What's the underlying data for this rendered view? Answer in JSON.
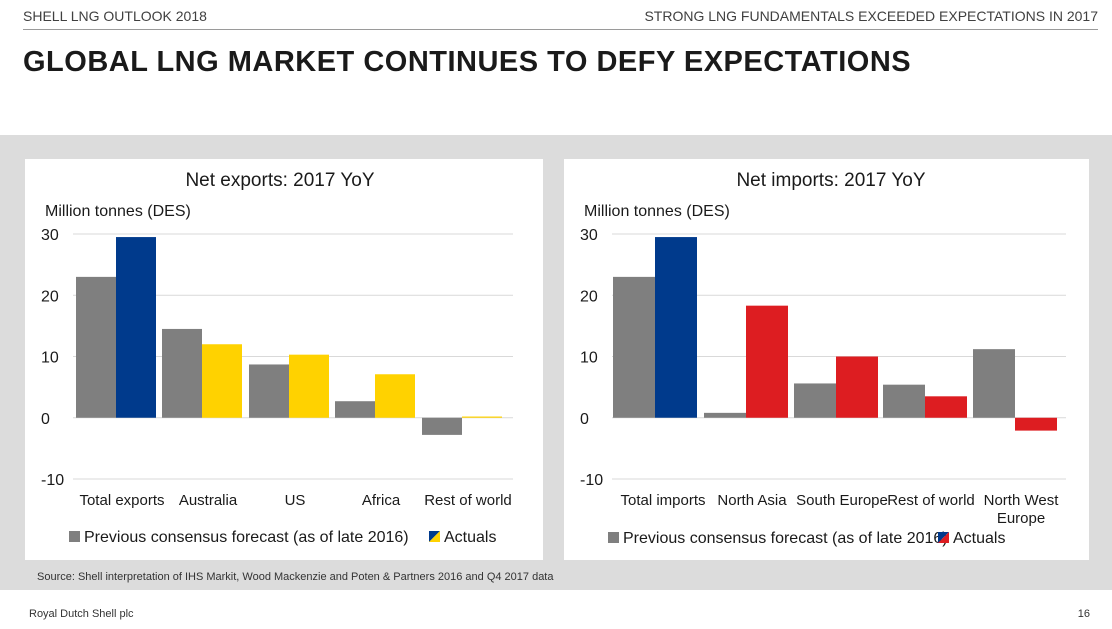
{
  "header": {
    "left": "SHELL LNG OUTLOOK 2018",
    "right": "STRONG LNG FUNDAMENTALS EXCEEDED EXPECTATIONS IN 2017"
  },
  "page_title": "GLOBAL LNG MARKET CONTINUES TO DEFY EXPECTATIONS",
  "source": "Source: Shell interpretation of IHS Markit, Wood Mackenzie and Poten & Partners 2016 and Q4 2017 data",
  "footer": {
    "company": "Royal Dutch Shell plc",
    "page_number": "16"
  },
  "colors": {
    "forecast": "#7f7f7f",
    "total_actual": "#003a8c",
    "exports_actual": "#ffd200",
    "imports_actual": "#dd1d21"
  },
  "chart_data": [
    {
      "type": "bar",
      "title": "Net exports: 2017 YoY",
      "ylabel": "Million tonnes (DES)",
      "ylim": [
        -10,
        30
      ],
      "yticks": [
        30,
        20,
        10,
        0,
        -10
      ],
      "grid": true,
      "legend_position": "bottom",
      "categories": [
        "Total exports",
        "Australia",
        "US",
        "Africa",
        "Rest of world"
      ],
      "series": [
        {
          "name": "Previous consensus forecast (as of late 2016)",
          "values": [
            23,
            14.5,
            8.7,
            2.7,
            -2.8
          ]
        },
        {
          "name": "Actuals",
          "values": [
            29.5,
            12,
            10.3,
            7.1,
            0.2
          ]
        }
      ]
    },
    {
      "type": "bar",
      "title": "Net imports: 2017 YoY",
      "ylabel": "Million tonnes (DES)",
      "ylim": [
        -10,
        30
      ],
      "yticks": [
        30,
        20,
        10,
        0,
        -10
      ],
      "grid": true,
      "legend_position": "bottom",
      "categories": [
        "Total imports",
        "North Asia",
        "South Europe",
        "Rest of world",
        "North West Europe"
      ],
      "series": [
        {
          "name": "Previous consensus forecast (as of late 2016)",
          "values": [
            23,
            0.8,
            5.6,
            5.4,
            11.2
          ]
        },
        {
          "name": "Actuals",
          "values": [
            29.5,
            18.3,
            10,
            3.5,
            -2.1
          ]
        }
      ]
    }
  ]
}
